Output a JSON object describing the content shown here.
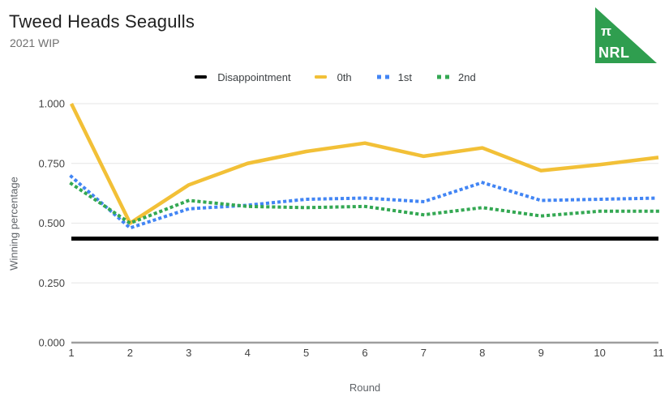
{
  "header": {
    "title": "Tweed Heads Seagulls",
    "subtitle": "2021 WIP"
  },
  "logo": {
    "pi": "π",
    "text": "NRL",
    "color": "#2f9e4f"
  },
  "chart_data": {
    "type": "line",
    "title": "Tweed Heads Seagulls",
    "subtitle": "2021 WIP",
    "x": [
      1,
      2,
      3,
      4,
      5,
      6,
      7,
      8,
      9,
      10,
      11
    ],
    "xlabel": "Round",
    "ylabel": "Winning percentage",
    "ylim": [
      0,
      1
    ],
    "yticks": [
      "0.000",
      "0.250",
      "0.500",
      "0.750",
      "1.000"
    ],
    "grid": true,
    "legend_position": "top",
    "series": [
      {
        "name": "Disappointment",
        "color": "#000000",
        "style": "solid",
        "width": 5,
        "values": [
          0.435,
          0.435,
          0.435,
          0.435,
          0.435,
          0.435,
          0.435,
          0.435,
          0.435,
          0.435,
          0.435
        ]
      },
      {
        "name": "0th",
        "color": "#F2C037",
        "style": "solid",
        "width": 4.5,
        "values": [
          1.0,
          0.5,
          0.66,
          0.75,
          0.8,
          0.835,
          0.78,
          0.815,
          0.72,
          0.745,
          0.775
        ]
      },
      {
        "name": "1st",
        "color": "#4285F4",
        "style": "dotted",
        "width": 4,
        "values": [
          0.695,
          0.48,
          0.56,
          0.575,
          0.6,
          0.605,
          0.59,
          0.67,
          0.595,
          0.6,
          0.605
        ]
      },
      {
        "name": "2nd",
        "color": "#34A853",
        "style": "dotted",
        "width": 4,
        "values": [
          0.665,
          0.5,
          0.595,
          0.57,
          0.565,
          0.57,
          0.535,
          0.565,
          0.53,
          0.55,
          0.55
        ]
      }
    ]
  }
}
